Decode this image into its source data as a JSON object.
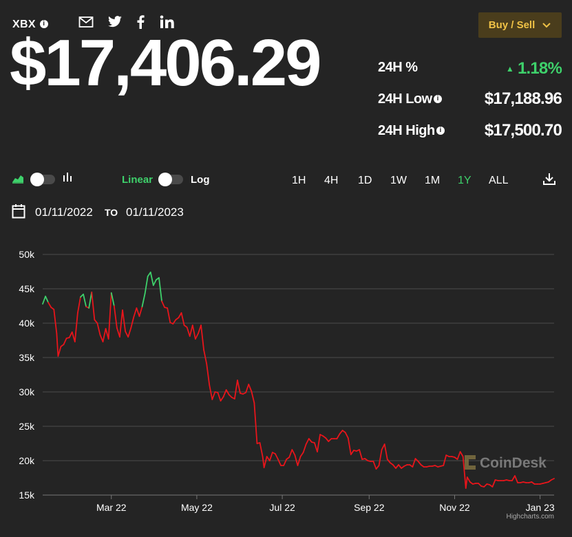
{
  "header": {
    "ticker": "XBX",
    "price": "$17,406.29",
    "buy_sell_label": "Buy / Sell"
  },
  "stats": [
    {
      "label": "24H %",
      "value": "1.18%",
      "trend": "up"
    },
    {
      "label": "24H Low",
      "value": "$17,188.96"
    },
    {
      "label": "24H High",
      "value": "$17,500.70"
    }
  ],
  "controls": {
    "scale_linear": "Linear",
    "scale_log": "Log",
    "ranges": [
      "1H",
      "4H",
      "1D",
      "1W",
      "1M",
      "1Y",
      "ALL"
    ],
    "active_range": "1Y",
    "date_from": "01/11/2022",
    "date_to_label": "TO",
    "date_to": "01/11/2023"
  },
  "colors": {
    "up": "#3ed16b",
    "down": "#e8151b",
    "accent": "#f0c246"
  },
  "chart_data": {
    "type": "line",
    "y_ticks": [
      "15k",
      "20k",
      "25k",
      "30k",
      "35k",
      "40k",
      "45k",
      "50k"
    ],
    "y_tick_values": [
      15000,
      20000,
      25000,
      30000,
      35000,
      40000,
      45000,
      50000
    ],
    "ylim": [
      15000,
      50000
    ],
    "x_tick_labels": [
      {
        "label": "Mar 22",
        "value": "2022-03-01"
      },
      {
        "label": "May 22",
        "value": "2022-05-01"
      },
      {
        "label": "Jul 22",
        "value": "2022-07-01"
      },
      {
        "label": "Sep 22",
        "value": "2022-09-01"
      },
      {
        "label": "Nov 22",
        "value": "2022-11-01"
      },
      {
        "label": "Jan 23",
        "value": "2023-01-01"
      }
    ],
    "xlim": [
      "2022-01-11",
      "2023-01-11"
    ],
    "watermark": "CoinDesk",
    "credit": "Highcharts.com",
    "series": [
      {
        "points": [
          [
            "2022-01-11",
            42800
          ],
          [
            "2022-01-13",
            43900
          ],
          [
            "2022-01-15",
            43000
          ],
          [
            "2022-01-17",
            42300
          ],
          [
            "2022-01-19",
            42000
          ],
          [
            "2022-01-21",
            38500
          ],
          [
            "2022-01-22",
            35200
          ],
          [
            "2022-01-24",
            36600
          ],
          [
            "2022-01-26",
            36900
          ],
          [
            "2022-01-28",
            37800
          ],
          [
            "2022-01-30",
            37900
          ],
          [
            "2022-02-01",
            38700
          ],
          [
            "2022-02-03",
            37300
          ],
          [
            "2022-02-05",
            41500
          ],
          [
            "2022-02-07",
            43800
          ],
          [
            "2022-02-09",
            44200
          ],
          [
            "2022-02-11",
            42400
          ],
          [
            "2022-02-13",
            42200
          ],
          [
            "2022-02-15",
            44500
          ],
          [
            "2022-02-17",
            40500
          ],
          [
            "2022-02-19",
            40000
          ],
          [
            "2022-02-21",
            38300
          ],
          [
            "2022-02-23",
            37300
          ],
          [
            "2022-02-25",
            39200
          ],
          [
            "2022-02-27",
            37700
          ],
          [
            "2022-03-01",
            44400
          ],
          [
            "2022-03-03",
            42500
          ],
          [
            "2022-03-05",
            39300
          ],
          [
            "2022-03-07",
            38000
          ],
          [
            "2022-03-09",
            41900
          ],
          [
            "2022-03-11",
            38800
          ],
          [
            "2022-03-13",
            38000
          ],
          [
            "2022-03-15",
            39300
          ],
          [
            "2022-03-17",
            40900
          ],
          [
            "2022-03-19",
            42200
          ],
          [
            "2022-03-21",
            41000
          ],
          [
            "2022-03-23",
            42400
          ],
          [
            "2022-03-25",
            44300
          ],
          [
            "2022-03-27",
            46800
          ],
          [
            "2022-03-29",
            47400
          ],
          [
            "2022-03-31",
            45500
          ],
          [
            "2022-04-02",
            46300
          ],
          [
            "2022-04-04",
            46600
          ],
          [
            "2022-04-06",
            43200
          ],
          [
            "2022-04-08",
            42300
          ],
          [
            "2022-04-10",
            42200
          ],
          [
            "2022-04-12",
            40100
          ],
          [
            "2022-04-14",
            39900
          ],
          [
            "2022-04-16",
            40500
          ],
          [
            "2022-04-18",
            40800
          ],
          [
            "2022-04-20",
            41500
          ],
          [
            "2022-04-22",
            39700
          ],
          [
            "2022-04-24",
            39400
          ],
          [
            "2022-04-26",
            38100
          ],
          [
            "2022-04-28",
            39700
          ],
          [
            "2022-04-30",
            37700
          ],
          [
            "2022-05-02",
            38500
          ],
          [
            "2022-05-04",
            39700
          ],
          [
            "2022-05-06",
            36100
          ],
          [
            "2022-05-08",
            34100
          ],
          [
            "2022-05-10",
            31000
          ],
          [
            "2022-05-12",
            28900
          ],
          [
            "2022-05-14",
            30000
          ],
          [
            "2022-05-16",
            29900
          ],
          [
            "2022-05-18",
            28700
          ],
          [
            "2022-05-20",
            29300
          ],
          [
            "2022-05-22",
            30300
          ],
          [
            "2022-05-24",
            29600
          ],
          [
            "2022-05-26",
            29200
          ],
          [
            "2022-05-28",
            29000
          ],
          [
            "2022-05-30",
            31700
          ],
          [
            "2022-06-01",
            29800
          ],
          [
            "2022-06-03",
            29700
          ],
          [
            "2022-06-05",
            29900
          ],
          [
            "2022-06-07",
            31100
          ],
          [
            "2022-06-09",
            30100
          ],
          [
            "2022-06-11",
            28400
          ],
          [
            "2022-06-13",
            22500
          ],
          [
            "2022-06-15",
            22600
          ],
          [
            "2022-06-17",
            20600
          ],
          [
            "2022-06-18",
            19000
          ],
          [
            "2022-06-20",
            20600
          ],
          [
            "2022-06-22",
            20000
          ],
          [
            "2022-06-24",
            21200
          ],
          [
            "2022-06-26",
            21000
          ],
          [
            "2022-06-28",
            20200
          ],
          [
            "2022-06-30",
            19300
          ],
          [
            "2022-07-02",
            19300
          ],
          [
            "2022-07-04",
            20200
          ],
          [
            "2022-07-06",
            20500
          ],
          [
            "2022-07-08",
            21600
          ],
          [
            "2022-07-10",
            20800
          ],
          [
            "2022-07-12",
            19300
          ],
          [
            "2022-07-14",
            20600
          ],
          [
            "2022-07-16",
            21200
          ],
          [
            "2022-07-18",
            22400
          ],
          [
            "2022-07-20",
            23200
          ],
          [
            "2022-07-22",
            22700
          ],
          [
            "2022-07-24",
            22600
          ],
          [
            "2022-07-26",
            21300
          ],
          [
            "2022-07-28",
            23800
          ],
          [
            "2022-07-30",
            23600
          ],
          [
            "2022-08-01",
            23300
          ],
          [
            "2022-08-03",
            22800
          ],
          [
            "2022-08-05",
            23200
          ],
          [
            "2022-08-07",
            23200
          ],
          [
            "2022-08-09",
            23200
          ],
          [
            "2022-08-11",
            23900
          ],
          [
            "2022-08-13",
            24400
          ],
          [
            "2022-08-15",
            24100
          ],
          [
            "2022-08-17",
            23300
          ],
          [
            "2022-08-19",
            20900
          ],
          [
            "2022-08-21",
            21500
          ],
          [
            "2022-08-23",
            21400
          ],
          [
            "2022-08-25",
            21600
          ],
          [
            "2022-08-27",
            20200
          ],
          [
            "2022-08-29",
            20300
          ],
          [
            "2022-08-31",
            20000
          ],
          [
            "2022-09-02",
            19900
          ],
          [
            "2022-09-04",
            19900
          ],
          [
            "2022-09-06",
            18800
          ],
          [
            "2022-09-08",
            19300
          ],
          [
            "2022-09-10",
            21600
          ],
          [
            "2022-09-12",
            22400
          ],
          [
            "2022-09-14",
            20200
          ],
          [
            "2022-09-16",
            19700
          ],
          [
            "2022-09-18",
            19400
          ],
          [
            "2022-09-20",
            18900
          ],
          [
            "2022-09-22",
            19400
          ],
          [
            "2022-09-24",
            18900
          ],
          [
            "2022-09-26",
            19200
          ],
          [
            "2022-09-28",
            19400
          ],
          [
            "2022-09-30",
            19400
          ],
          [
            "2022-10-02",
            19100
          ],
          [
            "2022-10-04",
            20300
          ],
          [
            "2022-10-06",
            19900
          ],
          [
            "2022-10-08",
            19400
          ],
          [
            "2022-10-10",
            19100
          ],
          [
            "2022-10-12",
            19100
          ],
          [
            "2022-10-14",
            19200
          ],
          [
            "2022-10-16",
            19200
          ],
          [
            "2022-10-18",
            19300
          ],
          [
            "2022-10-20",
            19100
          ],
          [
            "2022-10-22",
            19200
          ],
          [
            "2022-10-24",
            19300
          ],
          [
            "2022-10-26",
            20800
          ],
          [
            "2022-10-28",
            20600
          ],
          [
            "2022-10-30",
            20600
          ],
          [
            "2022-11-01",
            20500
          ],
          [
            "2022-11-03",
            20200
          ],
          [
            "2022-11-05",
            21300
          ],
          [
            "2022-11-07",
            20600
          ],
          [
            "2022-11-09",
            16000
          ],
          [
            "2022-11-10",
            17600
          ],
          [
            "2022-11-12",
            16900
          ],
          [
            "2022-11-14",
            16600
          ],
          [
            "2022-11-16",
            16700
          ],
          [
            "2022-11-18",
            16700
          ],
          [
            "2022-11-20",
            16300
          ],
          [
            "2022-11-22",
            16200
          ],
          [
            "2022-11-24",
            16600
          ],
          [
            "2022-11-26",
            16500
          ],
          [
            "2022-11-28",
            16200
          ],
          [
            "2022-11-30",
            17200
          ],
          [
            "2022-12-02",
            17100
          ],
          [
            "2022-12-04",
            17100
          ],
          [
            "2022-12-06",
            17100
          ],
          [
            "2022-12-08",
            17200
          ],
          [
            "2022-12-10",
            17100
          ],
          [
            "2022-12-12",
            17100
          ],
          [
            "2022-12-14",
            17800
          ],
          [
            "2022-12-16",
            16800
          ],
          [
            "2022-12-18",
            16800
          ],
          [
            "2022-12-20",
            16900
          ],
          [
            "2022-12-22",
            16800
          ],
          [
            "2022-12-24",
            16800
          ],
          [
            "2022-12-26",
            16900
          ],
          [
            "2022-12-28",
            16600
          ],
          [
            "2022-12-30",
            16600
          ],
          [
            "2023-01-01",
            16600
          ],
          [
            "2023-01-03",
            16700
          ],
          [
            "2023-01-05",
            16800
          ],
          [
            "2023-01-07",
            16900
          ],
          [
            "2023-01-09",
            17200
          ],
          [
            "2023-01-11",
            17400
          ]
        ]
      }
    ]
  }
}
